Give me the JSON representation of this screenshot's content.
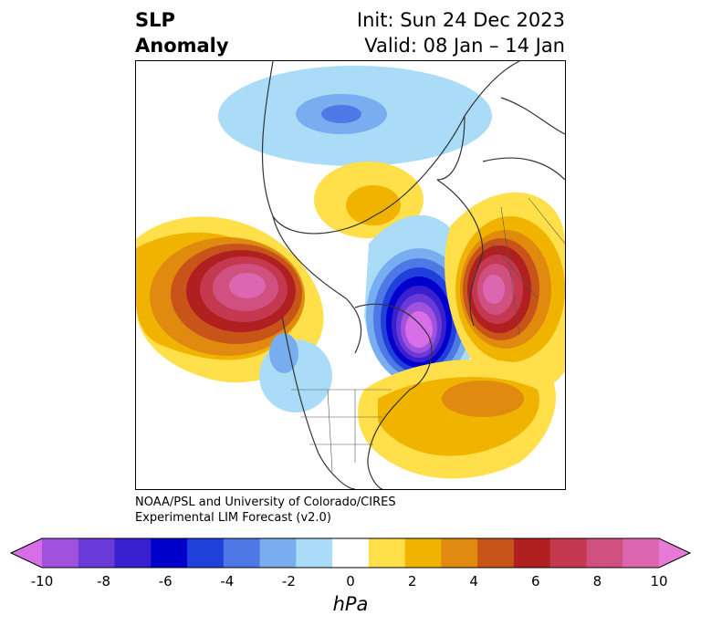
{
  "title": {
    "left_line1": "SLP",
    "left_line2": "Anomaly",
    "right_line1": "Init: Sun 24 Dec 2023",
    "right_line2": "Valid: 08 Jan – 14 Jan"
  },
  "credit": {
    "line1": "NOAA/PSL and University of Colorado/CIRES",
    "line2": "Experimental LIM Forecast (v2.0)"
  },
  "colorbar": {
    "unit": "hPa",
    "tick_labels": [
      "-10",
      "-8",
      "-6",
      "-4",
      "-2",
      "0",
      "2",
      "4",
      "6",
      "8",
      "10"
    ],
    "colors": [
      "#d76ee7",
      "#a052de",
      "#6a3ad9",
      "#3a1fd0",
      "#0000cc",
      "#2040dc",
      "#4e78e6",
      "#78aef0",
      "#aadcf8",
      "#ffffff",
      "#ffe04a",
      "#f0b400",
      "#e08a10",
      "#c8541a",
      "#b02020",
      "#c43850",
      "#d05080",
      "#dc66b0",
      "#e67ad6"
    ]
  },
  "map": {
    "projection": "polar stereographic, Northern Hemisphere",
    "field": "sea level pressure anomaly",
    "features": [
      {
        "type": "positive",
        "region": "North Pacific / Aleutians",
        "peak_hPa": 10
      },
      {
        "type": "negative",
        "region": "Eastern Canada / Labrador Sea",
        "peak_hPa": -10
      },
      {
        "type": "positive",
        "region": "Scandinavia / Northern Europe",
        "peak_hPa": 8
      },
      {
        "type": "positive",
        "region": "North Atlantic / off US East Coast",
        "peak_hPa": 4
      },
      {
        "type": "positive",
        "region": "Central Arctic / Siberia",
        "peak_hPa": 4
      },
      {
        "type": "negative",
        "region": "Central Asia",
        "peak_hPa": -4
      }
    ]
  }
}
